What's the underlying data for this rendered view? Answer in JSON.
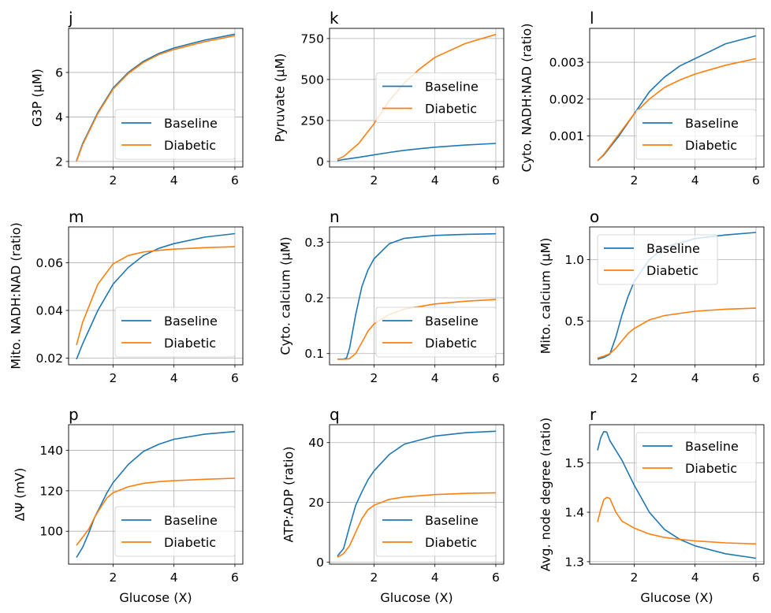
{
  "colors": {
    "Baseline": "#1f77b4",
    "Diabetic": "#ff7f0e",
    "grid": "#b0b0b0"
  },
  "chart_data": [
    {
      "type": "line",
      "panel": "j",
      "xlabel": "",
      "ylabel": "G3P (µM)",
      "xlim": [
        0.54,
        6.26
      ],
      "ylim": [
        1.75,
        7.98
      ],
      "xticks": [
        2,
        4,
        6
      ],
      "yticks": [
        2,
        4,
        6
      ],
      "grid": true,
      "legend": "lower right",
      "x": [
        0.8,
        1,
        1.5,
        2,
        2.5,
        3,
        3.5,
        4,
        5,
        6
      ],
      "series": [
        {
          "name": "Baseline",
          "values": [
            2.03,
            2.8,
            4.2,
            5.3,
            6.0,
            6.5,
            6.85,
            7.1,
            7.45,
            7.72
          ]
        },
        {
          "name": "Diabetic",
          "values": [
            2.0,
            2.75,
            4.15,
            5.25,
            5.95,
            6.45,
            6.8,
            7.03,
            7.38,
            7.65
          ]
        }
      ]
    },
    {
      "type": "line",
      "panel": "k",
      "xlabel": "",
      "ylabel": "Pyruvate (µM)",
      "xlim": [
        0.54,
        6.26
      ],
      "ylim": [
        -34,
        812
      ],
      "xticks": [
        2,
        4,
        6
      ],
      "yticks": [
        0,
        250,
        500,
        750
      ],
      "grid": true,
      "legend": "center right",
      "x": [
        0.8,
        1,
        1.5,
        2,
        2.5,
        3,
        3.5,
        4,
        5,
        6
      ],
      "series": [
        {
          "name": "Baseline",
          "values": [
            5,
            12,
            25,
            40,
            55,
            68,
            78,
            87,
            100,
            110
          ]
        },
        {
          "name": "Diabetic",
          "values": [
            13,
            30,
            110,
            230,
            370,
            480,
            565,
            635,
            720,
            775
          ]
        }
      ]
    },
    {
      "type": "line",
      "panel": "l",
      "xlabel": "",
      "ylabel": "Cyto. NADH:NAD (ratio)",
      "xlim": [
        0.54,
        6.26
      ],
      "ylim": [
        0.000158,
        0.00392
      ],
      "xticks": [
        2,
        4,
        6
      ],
      "yticks": [
        0.001,
        0.002,
        0.003
      ],
      "ytick_labels": [
        "0.001",
        "0.002",
        "0.003"
      ],
      "grid": true,
      "legend": "lower right",
      "x": [
        0.8,
        1,
        1.5,
        2,
        2.5,
        3,
        3.5,
        4,
        5,
        6
      ],
      "series": [
        {
          "name": "Baseline",
          "values": [
            0.00033,
            0.00048,
            0.001,
            0.0016,
            0.0022,
            0.0026,
            0.0029,
            0.0031,
            0.0035,
            0.00372
          ]
        },
        {
          "name": "Diabetic",
          "values": [
            0.00033,
            0.0005,
            0.00105,
            0.0016,
            0.002,
            0.00232,
            0.00252,
            0.00268,
            0.00292,
            0.0031
          ]
        }
      ]
    },
    {
      "type": "line",
      "panel": "m",
      "xlabel": "",
      "ylabel": "Mito. NADH:NAD (ratio)",
      "xlim": [
        0.54,
        6.26
      ],
      "ylim": [
        0.0172,
        0.075
      ],
      "xticks": [
        2,
        4,
        6
      ],
      "yticks": [
        0.02,
        0.04,
        0.06
      ],
      "ytick_labels": [
        "0.02",
        "0.04",
        "0.06"
      ],
      "grid": true,
      "legend": "lower right",
      "x": [
        0.8,
        1,
        1.5,
        2,
        2.5,
        3,
        3.5,
        4,
        5,
        6
      ],
      "series": [
        {
          "name": "Baseline",
          "values": [
            0.0195,
            0.026,
            0.04,
            0.051,
            0.058,
            0.063,
            0.066,
            0.068,
            0.0707,
            0.0722
          ]
        },
        {
          "name": "Diabetic",
          "values": [
            0.0255,
            0.035,
            0.051,
            0.0595,
            0.063,
            0.0645,
            0.0652,
            0.0657,
            0.0663,
            0.0667
          ]
        }
      ]
    },
    {
      "type": "line",
      "panel": "n",
      "xlabel": "",
      "ylabel": "Cyto. calcium (µM)",
      "xlim": [
        0.54,
        6.26
      ],
      "ylim": [
        0.0798,
        0.3273
      ],
      "xticks": [
        2,
        4,
        6
      ],
      "yticks": [
        0.1,
        0.2,
        0.3
      ],
      "ytick_labels": [
        "0.1",
        "0.2",
        "0.3"
      ],
      "grid": true,
      "legend": "lower right",
      "x": [
        0.8,
        1,
        1.1,
        1.2,
        1.4,
        1.6,
        1.8,
        2,
        2.5,
        3,
        4,
        5,
        6
      ],
      "series": [
        {
          "name": "Baseline",
          "values": [
            0.09,
            0.09,
            0.092,
            0.11,
            0.17,
            0.22,
            0.25,
            0.27,
            0.297,
            0.307,
            0.312,
            0.314,
            0.315
          ]
        },
        {
          "name": "Diabetic",
          "values": [
            0.09,
            0.09,
            0.09,
            0.091,
            0.1,
            0.12,
            0.14,
            0.153,
            0.17,
            0.18,
            0.189,
            0.194,
            0.197
          ]
        }
      ]
    },
    {
      "type": "line",
      "panel": "o",
      "xlabel": "",
      "ylabel": "Mito. calcium (µM)",
      "xlim": [
        0.54,
        6.26
      ],
      "ylim": [
        0.145,
        1.265
      ],
      "xticks": [
        2,
        4,
        6
      ],
      "yticks": [
        0.5,
        1.0
      ],
      "ytick_labels": [
        "0.5",
        "1.0"
      ],
      "grid": true,
      "legend": "upper left",
      "x": [
        0.8,
        1,
        1.2,
        1.4,
        1.6,
        1.8,
        2,
        2.5,
        3,
        4,
        5,
        6
      ],
      "series": [
        {
          "name": "Baseline",
          "values": [
            0.19,
            0.205,
            0.23,
            0.37,
            0.55,
            0.7,
            0.82,
            1.0,
            1.1,
            1.17,
            1.2,
            1.22
          ]
        },
        {
          "name": "Diabetic",
          "values": [
            0.2,
            0.215,
            0.235,
            0.28,
            0.34,
            0.4,
            0.44,
            0.51,
            0.545,
            0.58,
            0.597,
            0.605
          ]
        }
      ]
    },
    {
      "type": "line",
      "panel": "p",
      "xlabel": "Glucose (X)",
      "ylabel": "ΔΨ (mV)",
      "xlim": [
        0.54,
        6.26
      ],
      "ylim": [
        83.7,
        152.7
      ],
      "xticks": [
        2,
        4,
        6
      ],
      "yticks": [
        100,
        120,
        140
      ],
      "grid": true,
      "legend": "lower right",
      "x": [
        0.8,
        1,
        1.2,
        1.4,
        1.6,
        1.8,
        2,
        2.5,
        3,
        3.5,
        4,
        5,
        6
      ],
      "series": [
        {
          "name": "Baseline",
          "values": [
            87,
            92,
            99,
            107,
            113,
            119,
            124,
            133,
            139.5,
            143,
            145.5,
            148,
            149.3
          ]
        },
        {
          "name": "Diabetic",
          "values": [
            93,
            97,
            101,
            107,
            112,
            116.5,
            119,
            122,
            123.7,
            124.5,
            125,
            125.7,
            126.2
          ]
        }
      ]
    },
    {
      "type": "line",
      "panel": "q",
      "xlabel": "Glucose (X)",
      "ylabel": "ATP:ADP (ratio)",
      "xlim": [
        0.54,
        6.26
      ],
      "ylim": [
        -0.7,
        46
      ],
      "xticks": [
        2,
        4,
        6
      ],
      "yticks": [
        0,
        20,
        40
      ],
      "grid": true,
      "legend": "lower right",
      "x": [
        0.8,
        1,
        1.2,
        1.4,
        1.6,
        1.8,
        2,
        2.5,
        3,
        4,
        5,
        6
      ],
      "series": [
        {
          "name": "Baseline",
          "values": [
            2,
            4.5,
            12,
            19,
            23.5,
            27.5,
            30.5,
            36,
            39.5,
            42.2,
            43.3,
            43.8
          ]
        },
        {
          "name": "Diabetic",
          "values": [
            1.6,
            2.8,
            5.5,
            10,
            14.5,
            17.5,
            19,
            21,
            21.8,
            22.6,
            23,
            23.2
          ]
        }
      ]
    },
    {
      "type": "line",
      "panel": "r",
      "xlabel": "Glucose (X)",
      "ylabel": "Avg. node degree (ratio)",
      "xlim": [
        0.54,
        6.26
      ],
      "ylim": [
        1.295,
        1.577
      ],
      "xticks": [
        2,
        4,
        6
      ],
      "yticks": [
        1.3,
        1.4,
        1.5
      ],
      "ytick_labels": [
        "1.3",
        "1.4",
        "1.5"
      ],
      "grid": true,
      "legend": "upper right",
      "x": [
        0.8,
        0.9,
        1,
        1.1,
        1.2,
        1.4,
        1.6,
        2,
        2.5,
        3,
        3.5,
        4,
        5,
        6
      ],
      "series": [
        {
          "name": "Baseline",
          "values": [
            1.525,
            1.55,
            1.563,
            1.562,
            1.545,
            1.525,
            1.505,
            1.455,
            1.4,
            1.365,
            1.345,
            1.332,
            1.316,
            1.307
          ]
        },
        {
          "name": "Diabetic",
          "values": [
            1.38,
            1.405,
            1.425,
            1.43,
            1.428,
            1.4,
            1.382,
            1.368,
            1.356,
            1.349,
            1.345,
            1.342,
            1.338,
            1.336
          ]
        }
      ]
    }
  ]
}
